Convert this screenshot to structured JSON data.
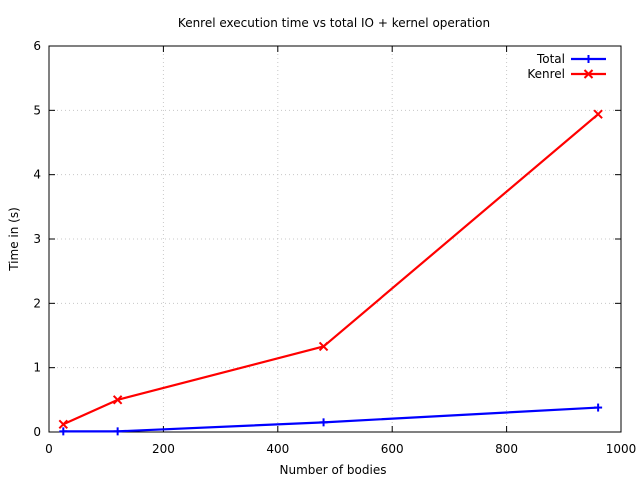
{
  "chart_data": {
    "type": "line",
    "title": "Kenrel execution time vs total IO + kernel operation",
    "xlabel": "Number of bodies",
    "ylabel": "Time in (s)",
    "xlim": [
      0,
      1000
    ],
    "ylim": [
      0,
      6
    ],
    "xticks": [
      0,
      200,
      400,
      600,
      800,
      1000
    ],
    "yticks": [
      0,
      1,
      2,
      3,
      4,
      5,
      6
    ],
    "grid": true,
    "legend_position": "top-right",
    "series": [
      {
        "name": "Total",
        "color": "#0000ff",
        "marker": "plus",
        "x": [
          25,
          120,
          480,
          960
        ],
        "y": [
          0.01,
          0.01,
          0.15,
          0.38
        ]
      },
      {
        "name": "Kenrel",
        "color": "#ff0000",
        "marker": "cross",
        "x": [
          25,
          120,
          480,
          960
        ],
        "y": [
          0.12,
          0.5,
          1.33,
          4.94
        ]
      }
    ]
  }
}
